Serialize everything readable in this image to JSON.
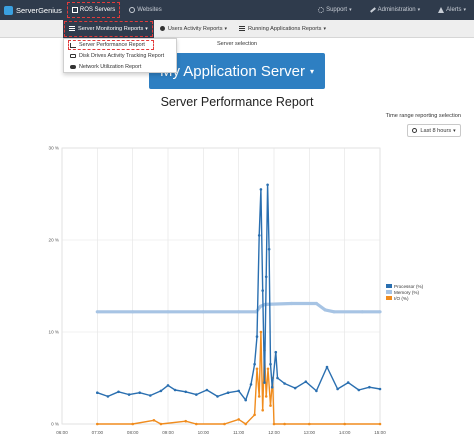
{
  "navbar": {
    "brand": "ServerGenius",
    "items": [
      {
        "label": "ROS Servers",
        "icon": "server-icon"
      },
      {
        "label": "Websites",
        "icon": "globe-icon"
      }
    ],
    "right_items": [
      {
        "label": "Support",
        "icon": "gear-icon"
      },
      {
        "label": "Administration",
        "icon": "wrench-icon"
      },
      {
        "label": "Alerts",
        "icon": "warning-icon"
      }
    ]
  },
  "subnav": {
    "tabs": [
      {
        "label": "Server Monitoring Reports"
      },
      {
        "label": "Users Activity Reports"
      },
      {
        "label": "Running Applications Reports"
      }
    ]
  },
  "dropdown": {
    "items": [
      {
        "label": "Server Performance Report"
      },
      {
        "label": "Disk Drives Activity Tracking Report"
      },
      {
        "label": "Network Utilization Report"
      }
    ]
  },
  "server": {
    "label": "Server selection",
    "selected": "My Application Server"
  },
  "page_title": "Server Performance Report",
  "time_range": {
    "label": "Time range reporting selection",
    "selected": "Last 8 hours"
  },
  "colors": {
    "processor": "#2a6fb0",
    "memory": "#a7c4e4",
    "io": "#f08c1e",
    "navbar": "#2f3b4c",
    "accent": "#2e7fc2"
  },
  "chart_data": {
    "type": "line",
    "title": "",
    "xlabel": "",
    "ylabel": "",
    "x_ticks": [
      "06:00",
      "07:00",
      "08:00",
      "09:00",
      "10:00",
      "11:00",
      "12:00",
      "13:00",
      "14:00",
      "15:00"
    ],
    "y_ticks": [
      "0 %",
      "10 %",
      "20 %",
      "30 %"
    ],
    "ylim": [
      0,
      30
    ],
    "xlim": [
      6,
      15
    ],
    "grid": true,
    "legend": "right",
    "series": [
      {
        "name": "Processor (%)",
        "points": [
          [
            7.0,
            3.4
          ],
          [
            7.3,
            3.0
          ],
          [
            7.6,
            3.5
          ],
          [
            7.9,
            3.2
          ],
          [
            8.2,
            3.4
          ],
          [
            8.5,
            3.1
          ],
          [
            8.8,
            3.6
          ],
          [
            9.0,
            4.2
          ],
          [
            9.2,
            3.7
          ],
          [
            9.5,
            3.5
          ],
          [
            9.8,
            3.2
          ],
          [
            10.1,
            3.7
          ],
          [
            10.4,
            3.0
          ],
          [
            10.7,
            3.4
          ],
          [
            11.0,
            3.6
          ],
          [
            11.2,
            2.6
          ],
          [
            11.35,
            4.3
          ],
          [
            11.45,
            6.5
          ],
          [
            11.52,
            9.5
          ],
          [
            11.58,
            20.5
          ],
          [
            11.63,
            25.5
          ],
          [
            11.68,
            14.5
          ],
          [
            11.73,
            4.5
          ],
          [
            11.78,
            16.0
          ],
          [
            11.82,
            26.0
          ],
          [
            11.86,
            19.0
          ],
          [
            11.9,
            6.5
          ],
          [
            11.95,
            4.0
          ],
          [
            12.05,
            7.8
          ],
          [
            12.1,
            5.0
          ],
          [
            12.3,
            4.4
          ],
          [
            12.6,
            3.9
          ],
          [
            12.9,
            4.6
          ],
          [
            13.2,
            3.6
          ],
          [
            13.5,
            6.2
          ],
          [
            13.8,
            3.8
          ],
          [
            14.1,
            4.5
          ],
          [
            14.4,
            3.7
          ],
          [
            14.7,
            4.0
          ],
          [
            15.0,
            3.8
          ]
        ]
      },
      {
        "name": "Memory (%)",
        "points": [
          [
            7.0,
            12.2
          ],
          [
            8.0,
            12.2
          ],
          [
            9.0,
            12.2
          ],
          [
            10.0,
            12.2
          ],
          [
            11.0,
            12.2
          ],
          [
            11.5,
            12.2
          ],
          [
            11.62,
            12.8
          ],
          [
            11.75,
            13.0
          ],
          [
            12.5,
            13.1
          ],
          [
            13.2,
            13.1
          ],
          [
            13.45,
            12.4
          ],
          [
            13.7,
            12.2
          ],
          [
            14.5,
            12.2
          ],
          [
            15.0,
            12.2
          ]
        ]
      },
      {
        "name": "I/O (%)",
        "points": [
          [
            7.0,
            0.0
          ],
          [
            8.0,
            0.0
          ],
          [
            8.6,
            0.4
          ],
          [
            8.8,
            0.0
          ],
          [
            9.5,
            0.3
          ],
          [
            9.8,
            0.0
          ],
          [
            10.6,
            0.0
          ],
          [
            11.0,
            0.5
          ],
          [
            11.2,
            0.0
          ],
          [
            11.45,
            1.0
          ],
          [
            11.52,
            6.0
          ],
          [
            11.58,
            3.0
          ],
          [
            11.63,
            10.0
          ],
          [
            11.68,
            1.5
          ],
          [
            11.73,
            8.0
          ],
          [
            11.78,
            3.0
          ],
          [
            11.83,
            6.0
          ],
          [
            11.9,
            2.0
          ],
          [
            11.96,
            5.0
          ],
          [
            12.0,
            0.0
          ],
          [
            12.3,
            0.0
          ],
          [
            13.0,
            0.0
          ],
          [
            14.0,
            0.0
          ],
          [
            15.0,
            0.0
          ]
        ]
      }
    ]
  }
}
